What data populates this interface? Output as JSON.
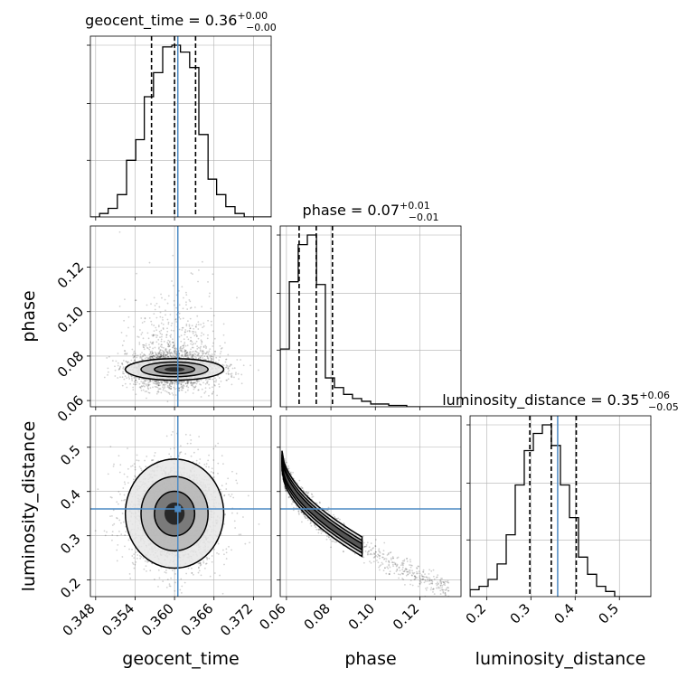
{
  "chart_data": {
    "type": "corner",
    "parameters": [
      {
        "key": "geocent_time",
        "label": "geocent_time",
        "title": {
          "prefix": "geocent_time = 0.36",
          "sup": "+0.00",
          "sub": "−0.00"
        },
        "range": [
          0.3472,
          0.3747
        ],
        "ticks": [
          0.348,
          0.354,
          0.36,
          0.366,
          0.372
        ],
        "tick_labels": [
          "0.348",
          "0.354",
          "0.360",
          "0.366",
          "0.372"
        ],
        "truth": 0.3605,
        "quantiles": [
          0.3565,
          0.36,
          0.3632
        ],
        "hist": {
          "edges": [
            0.3472,
            0.3486,
            0.3499,
            0.3513,
            0.3527,
            0.3541,
            0.3554,
            0.3568,
            0.3582,
            0.3596,
            0.3609,
            0.3623,
            0.3637,
            0.3651,
            0.3664,
            0.3678,
            0.3692,
            0.3706,
            0.3719,
            0.3733,
            0.3747
          ],
          "counts": [
            0,
            2,
            5,
            13,
            33,
            45,
            70,
            84,
            99,
            100,
            96,
            87,
            48,
            22,
            13,
            6,
            2,
            0,
            0,
            0
          ]
        }
      },
      {
        "key": "phase",
        "label": "phase",
        "title": {
          "prefix": "phase = 0.07",
          "sup": "+0.01",
          "sub": "−0.01"
        },
        "range": [
          0.0572,
          0.1385
        ],
        "ticks": [
          0.06,
          0.08,
          0.1,
          0.12
        ],
        "tick_labels": [
          "0.06",
          "0.08",
          "0.10",
          "0.12"
        ],
        "truth": null,
        "quantiles": [
          0.0657,
          0.0734,
          0.0807
        ],
        "hist": {
          "edges": [
            0.0572,
            0.0613,
            0.0653,
            0.0694,
            0.0735,
            0.0775,
            0.0816,
            0.0857,
            0.0897,
            0.0938,
            0.0979,
            0.1019,
            0.106,
            0.1101,
            0.1141,
            0.1182,
            0.1223,
            0.1263,
            0.1304,
            0.1345,
            0.1385
          ],
          "counts": [
            42,
            91,
            118,
            125,
            89,
            21,
            14,
            9,
            6,
            4,
            2,
            2,
            1,
            1,
            0,
            0,
            0,
            0,
            0,
            0
          ]
        }
      },
      {
        "key": "luminosity_distance",
        "label": "luminosity_distance",
        "title": {
          "prefix": "luminosity_distance = 0.35",
          "sup": "+0.06",
          "sub": "−0.05"
        },
        "range": [
          0.1625,
          0.571
        ],
        "ticks": [
          0.2,
          0.3,
          0.4,
          0.5
        ],
        "tick_labels": [
          "0.2",
          "0.3",
          "0.4",
          "0.5"
        ],
        "truth": 0.3605,
        "quantiles": [
          0.2975,
          0.346,
          0.4025
        ],
        "hist": {
          "edges": [
            0.1625,
            0.1829,
            0.2033,
            0.2238,
            0.2442,
            0.2646,
            0.285,
            0.3055,
            0.3259,
            0.3463,
            0.3667,
            0.3872,
            0.4076,
            0.428,
            0.4484,
            0.4689,
            0.4893,
            0.5097,
            0.5301,
            0.5506,
            0.571
          ],
          "counts": [
            4,
            6,
            10,
            19,
            36,
            65,
            85,
            95,
            100,
            88,
            65,
            46,
            23,
            13,
            6,
            3,
            0,
            0,
            0,
            0
          ]
        }
      }
    ],
    "panels_2d": [
      {
        "x": "geocent_time",
        "y": "phase",
        "truth": [
          0.3605,
          null
        ],
        "mean": [
          0.36,
          0.074
        ],
        "sd": [
          0.0034,
          0.004
        ],
        "rho": 0.0,
        "ymin_cut": 0.058
      },
      {
        "x": "geocent_time",
        "y": "luminosity_distance",
        "truth": [
          0.3605,
          0.3605
        ],
        "mean": [
          0.36,
          0.35
        ],
        "sd": [
          0.0034,
          0.056
        ],
        "rho": 0.0
      },
      {
        "x": "phase",
        "y": "luminosity_distance",
        "truth": [
          null,
          0.3605
        ],
        "curve": "banana",
        "mean": [
          0.0735,
          0.35
        ]
      }
    ],
    "grid": true,
    "truth_color": "#4c8ac4",
    "line_color": "#000000"
  }
}
